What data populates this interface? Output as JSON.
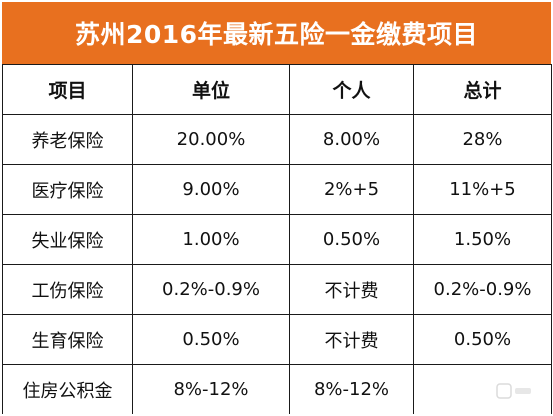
{
  "title": "苏州2016年最新五险一金缴费项目",
  "table": {
    "headers": [
      "项目",
      "单位",
      "个人",
      "总计"
    ],
    "rows": [
      [
        "养老保险",
        "20.00%",
        "8.00%",
        "28%"
      ],
      [
        "医疗保险",
        "9.00%",
        "2%+5",
        "11%+5"
      ],
      [
        "失业保险",
        "1.00%",
        "0.50%",
        "1.50%"
      ],
      [
        "工伤保险",
        "0.2%-0.9%",
        "不计费",
        "0.2%-0.9%"
      ],
      [
        "生育保险",
        "0.50%",
        "不计费",
        "0.50%"
      ],
      [
        "住房公积金",
        "8%-12%",
        "8%-12%",
        ""
      ]
    ]
  },
  "colors": {
    "title_background": "#e8701f",
    "title_text": "#ffffff",
    "grid_lines": "#1a1a1a"
  }
}
